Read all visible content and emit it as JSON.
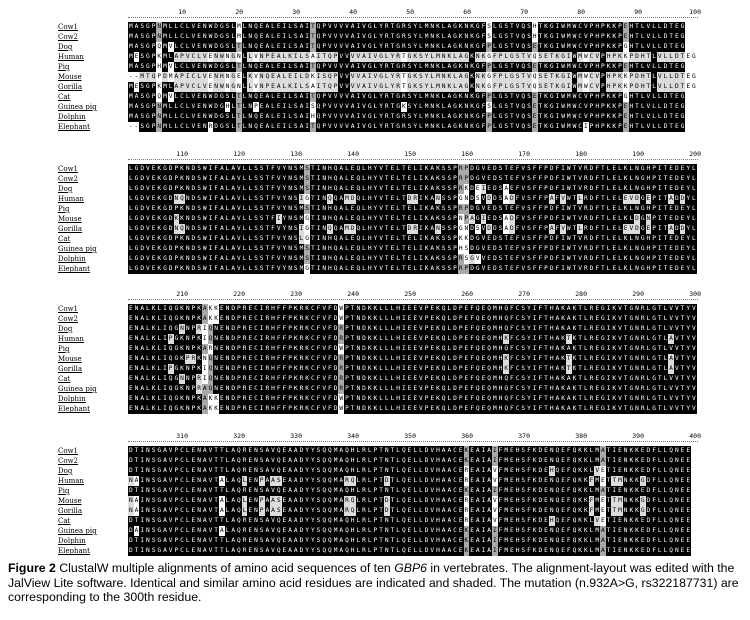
{
  "species": [
    "Cow1",
    "Cow2",
    "Dog",
    "Human",
    "Pig",
    "Mouse",
    "Gorilla",
    "Cat",
    "Guinea pig",
    "Dolphin",
    "Elephant"
  ],
  "blocks": [
    {
      "ticks": [
        "10",
        "20",
        "30",
        "40",
        "50",
        "60",
        "70",
        "80",
        "90",
        "100"
      ],
      "rows": [
        "MASGPNMLLCLVENWDGSLMLNQEALEILSAITQPVVVVAIVGLYRTGRSYLMNKLAGKNKGFSLGSTVQSHTKGIWMWCVPHPKKPEHTLVLLDTEG",
        "MASGPNMLLCLVENWDGSLMLNQEALEILSAITQPVVVVAIVGLYRTGRSYLMNKLAGKNKGFSLGSTVQSHTKGIWMWCVPHPKKPEHTLVLLDTEG",
        "MASGPQMVLCLVENWDGSLTLNQEALEILSAITQPVVVVAIVGLYRTGRSYLMNKLAGKNKGFPLGSTVQSETKGIWMWCVPHPKKPGHTLVLLDTEG",
        "MESGPKMLAPVCLVENWNGNLLVNPEALKILSAITQPVVVVAIVGLYRTGKSYLMNKLAGKNKGFPLGSTVQSETKGIWMWCVPHPKKPDHTLVLLDTEG",
        "MASGPHMVLCLVENWDGSLTLNQEALEILSAITQPVVVVAIVGLYRTGRSYLMNKLAGKNKGFPLGSTVQSETKGIWMWCVPHPKKPEHTLVLLDTEG",
        "--MTQPDMAPICLVENHNGELKVNQEALEILDKISQPVVVVAIVGLYRTGKSYLMNKLAGKNKGFPLGSTVQSETKGIWMWCVPHPKKPDHTLVLLDTEG",
        "MESGPKMLAPVCLVENWNGNLLVNPEALKILSAITQPVVVVAIVGLYRTGKSYLMNKLAGKNKGFPLGSTVQSETKGIWMWCVPHPKKPDHTLVLLDTEG",
        "MASGPQMVLCLVENWDGSLTLNQEALEILSAITQPVVVVAIVGLYRTGRSYLMNKLAGKNKGFPLGSTVQSETKGIWMWCVPHPKKPGHTLVLLDTEG",
        "MASGPNMLLCLVENWDGHLTLNPEALEILSAISQPVVVVAIVGLYRTGKSYLMNKLAGKNKGFSLGSTVQSETKGIWMWCVPHPKKPEHTLVLLDTEG",
        "MASGPNMLLCLVENWDGSLTLNQEALEILSAIHQPVVVVAIVGLYRTGRSYLMNKLAGKNKGFPLGSTVQSETKGIWMWCVPHPKKPEHTLVLLDTEG",
        "--SGPNMLLCLVENRDGSLTLNQEALEILSAITQPVVVVAIVGLYRTGRSYLMNKLAGKNKGFPLGSTVQSETKGIWMWCIPHPKKPEHTLVLLDTEG"
      ]
    },
    {
      "ticks": [
        "110",
        "120",
        "130",
        "140",
        "150",
        "160",
        "170",
        "180",
        "190",
        "200"
      ],
      "rows": [
        "LGDVEKGDPKNDSWIFALAVLLSSTFVYNSMSTINHQALEQLHYVTELTELIKAKSSPRPDGVEDSTEFVSFFPDFIWTVRDFTLELKLNGHPITEDEYL",
        "LGDVEKGDPKNDSWIFALAVLLSSTFVYNSMSTINHQALEQLHYVTELTELIKAKSSPRPDGVEDSTEFVSFFPDFIWTVRDFTLELKLNGHPITEDEYL",
        "LGDVEKGDPKNDSWIFALAVLLSSTFVYNSMSTINHQALEQLHYVTELTELIKAKSSPRKDEIEDSAEFVSFFPDFIWTVRDFTLELKLNGHPITEDEYL",
        "LGDVEKGDNQNDSWIFALAVLLSSTFVYNSIGTINQQAMDQLHYVTELTDRIKANSSPGNDSVDDSADFVSFFPAFVWTLRDFTLELEVDGEPITADDYL",
        "LGDVEKGDPKNDSWIFALAVLLSSTFVYNSMSTINHQALEQLHYVTELTELIKAKSSPRPDGVEDSTEFVSFFPDFIWTVRDFTLELKLNGHPITEDEYL",
        "LGDVEKGDKKNDSWIFALAVLLSSTFIYNSMGTINHQALEQLHYVTELTELIKAKSSPNPAGIEDSADFVSFFPDFIWTVRDFTLELKLDGNPITEDEYL",
        "LGDVEKGDNQNDSWIFALAVLLSSTFVYNSIGTINQQAMDQLHYVTELTDRIKANSSPGNDSVDDSADFVSFFPAFVWTLRDFTLELEVDGEPITADDYL",
        "LGDVEKGDPKNDSWIFALAVLLSSTFVYNSLGTINHQALEQLHYVTELTELIKAKSSPKKDGVEDSTEFVSFFPDFIWTVRDFTLELKLNGHPITEDEYL",
        "LGDVEKGDPKNDSWIFALAVLLSSTFVYNSMSTINHQALEQLHYVTELTELIKAKSSPHSDGVEDSTEFVSFFPDFIWTVRDFTLELKLNGHPITEDEYL",
        "LGDVEKGDPKNDSWIFALAVLLSSTFVYNSMSTINHQALEQLHYVTELTELIKAKSSPRSGVVEDSTEFVSFFPDFIWTVRDFTLELKLNGHPITEDEYL",
        "LGDVEKGDPKNDSWIFALAVLLSSTFVYNSMGTINHQALEQLHYVTELTELIKAKSSPRPDGVEDSTEFVSFFPDFIWTVRDFTLELKLNGHPITEDEYL"
      ]
    },
    {
      "ticks": [
        "210",
        "220",
        "230",
        "240",
        "250",
        "260",
        "270",
        "280",
        "290",
        "300"
      ],
      "rows": [
        "ENALKLIQGKNPKAKKENDPRECIRHFFPKRKCFVFDWPTNDKKLLLHIEEVPEKQLDPEFQEQMHQFCSYIFTHAKAKTLREGIKVTGNRLGTLVVTYV",
        "ENALKLIQGKNPKAKKENDPRECIRHFFPKRKCFVFDWPTNDKKLLLHIEEVPEKQLDPEFQEQMHQFCSYIFTHAKAKTLREGIKVTGNRLGTLVVTYV",
        "ENALKLIQGNNPRIQNENDPRECIRHFFPKRKCFVFDRPTNDKKLLLHIEEVPEKQLDPEFQEQMHQFCSYIFTHAKAKTLREGIKVTGNRLGTLVVTYV",
        "ENALKLIPGKNPKIQNENDPRECIRHFFPKRKCFVFDRPTNDKKLLLHIEEVPEKQLDPEFQEQMHKFCSYIFTHAKTKTLREGIKVTGNRLGTLAVTYV",
        "ENALKLIQGKNPKARNENDPRECIRHFFPKRKCFVFDWPTNDKKLLLHIEEVPEKQLDPEFQEQMHQFCSYIFTHAKAKTLREGIKVTGNRLGTLVVTYV",
        "ENALKLIQGKPRKNQNENDPRECIRHFFPKRKCFVFDRPTNDKKLLLHIEEVPEKQLDPEFQEQMHKFCSYIFTHAKTKTLREGIKVTGNRLGTLAVTYV",
        "ENALKLIPGKNPKIQNENDPRECIRHFFPKRKCFVFDRPTNDKKLLLHIEEVPEKQLDPEFQEQMHKFCSYIFTHAKTKTLREGIKVTGNRLGTLAVTYV",
        "ENALKLIQGNNPRIQNENDPRECIRHFFPKRKCFVFDRPTNDKKLLLHIEEVPEKQLDPEFQEQMHQFCSYIFTHAKAKTLREGIKVTGNRLGTLVVTYV",
        "ENALKLIQGKNPRAQNENDPRECIRHFFPKRKCFVFDRPTNDKKLLLHIEEVPEKQLDPEFQEQMHQFCSYIFTHAKAKTLREGIKVTGNRLGTLVVTYV",
        "ENALKLIQGKNPKAKKENDPRECIRHFFPKRKCFVFDWPTNDKKLLLHIEEVPEKQLDPEFQEQMHQFCSYIFTHAKAKTLREGIKVTGNRLGTLVVTYV",
        "ENALKLIQGKNPKAKKENDPRECIRHFFPKRKCFVFDWPTNDKKLLLHIEEVPEKQLDPEFQEQMHQFCSYIFTHAKAKTLREGIKVTGNRLGTLVVTYV"
      ]
    },
    {
      "ticks": [
        "310",
        "320",
        "330",
        "340",
        "350",
        "360",
        "370",
        "380",
        "390",
        "400"
      ],
      "rows": [
        "DTINSGAVPCLENAVTTLAQRENSAVQEAADYYSQQMAQHLRLPTNTLQELLDVHAACEKEAIAIFMEHSFKDENQEFQKKLMATIENKKEDFLLQNEE",
        "DTINSGAVPCLENAVTTLAQRENSAVQEAADYYSQQMAQHLRLPTNTLQELLDVHAACEKEAIAIFMEHSFKDENQEFQKKLMATIENKKEDFLLQNEE",
        "DTINSGAVPCLENAVTTLAQRENSAVQEAADYYSQQMAQHLRLPTNTLQELLDVHAACEREAIAVFMEHSFKDEHQEFQKKLVETIENKKEDFLLQNEE",
        "NAINSGAVPCLENAVTALAQLENPAASEAADYYSQQMARQLRLPTDTLQELLDVHAACEREAIAVFMEHSFKDENQEFQKKFMETTMNKKGDFLLQNEE",
        "DTINSGAVPCLENAVTTLAQRENSAVQEAADYYSQQMAQHLRLPTNTLQELLDVHAACEKEAIAIFMEHSFKDENQEFQKKLMATIENKKEDFLLQNEE",
        "NAINSGAVPCLENAVTALAQLENPAASEAADYYSQQMARQLRLPTDTLQELLDVHAACEREAIAVFMEHSFKDENQEFQKKFMETTMNKKGDFLLQNEE",
        "NAINSGAVPCLENAVTALAQLENPAASEAADYYSQQMARQLRLPTDTLQELLDVHAACEREAIAVFMEHSFKDENQEFQKKFMETTMNKKGDFLLQNEE",
        "DTINSGAVPCLENAVTTLAQRENSAVQEAADYYSQQMAQHLRLPTNTLQELLDVHAACEREAIAVFMEHSFKDEHQEFQKKLVETIENKKEDFLLQNEE",
        "DAINSGAVPCLENAVTALAQRENSAVQEAADYYSQQMAQHLRLPTNTLQELLDVHAACEKEAIAIFMEHSFKDENQEFQKKLMATIENKKEDFLLQNEE",
        "DTINSGAVPCLENAVTTLAQRENSAVQEAADYYSQQMAQHLRLPTNTLQELLDVHAACEKEAIAIFMEHSFKDENQEFQKKLMATIENKKEDFLLQNEE",
        "DTINSGAVPCLENAVTTLAQRENSAVQEAADYYSQQMAQHLRLPTNTLQELLDVHAACEKEAIAIFMEHSFKDENQEFQKKLMATIENKKEDFLLQNEE"
      ]
    }
  ],
  "caption": {
    "label": "Figure 2",
    "text_before_gene": " ClustalW multiple alignments of amino acid sequences of ten ",
    "gene": "GBP6",
    "text_after_gene": " in vertebrates. The alignment-layout was edited with the JalView Lite software. Identical and similar amino acid residues are indicated and shaded. The mutation (n.932A>G, rs322187731) are corresponding to the 300th residue."
  },
  "colors": {
    "identical": "#000000",
    "similar_dark": "#a9a9a9",
    "similar_light": "#dcdcdc",
    "unshaded": "#ffffff"
  }
}
